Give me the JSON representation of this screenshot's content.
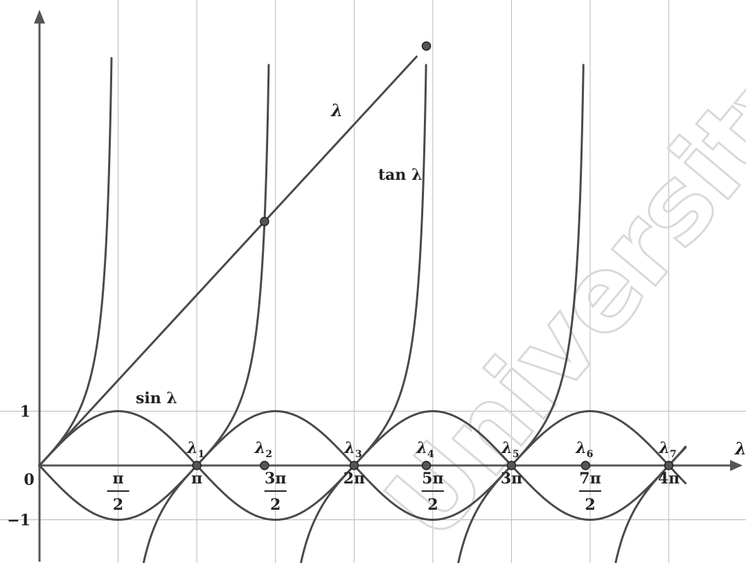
{
  "chart_data": {
    "type": "line",
    "title": "",
    "xlabel": "λ",
    "ylabel": "",
    "xlim": [
      0,
      12.9
    ],
    "ylim": [
      -1.5,
      7.33
    ],
    "grid": true,
    "y_ticks": [
      {
        "value": 1,
        "label": "1"
      },
      {
        "value": -1,
        "label": "−1"
      }
    ],
    "origin_label": "0",
    "x_ticks": [
      {
        "value": 1.5708,
        "num": "π",
        "den": "2"
      },
      {
        "value": 3.1416,
        "num": "π",
        "den": ""
      },
      {
        "value": 4.7124,
        "num": "3π",
        "den": "2"
      },
      {
        "value": 6.2832,
        "num": "2π",
        "den": ""
      },
      {
        "value": 7.854,
        "num": "5π",
        "den": "2"
      },
      {
        "value": 9.4248,
        "num": "3π",
        "den": ""
      },
      {
        "value": 10.9956,
        "num": "7π",
        "den": "2"
      },
      {
        "value": 12.5664,
        "num": "4π",
        "den": ""
      }
    ],
    "series": [
      {
        "name": "sin λ",
        "function": "sin"
      },
      {
        "name": "tan λ",
        "function": "tan"
      },
      {
        "name": "λ",
        "function": "identity"
      }
    ],
    "marked_points": [
      {
        "label": "",
        "x": 4.4934,
        "y": 4.4934
      },
      {
        "label": "",
        "x": 7.7253,
        "y": 7.7253
      },
      {
        "label": "λ",
        "sub": "1",
        "x": 3.1416,
        "y": 0
      },
      {
        "label": "λ",
        "sub": "2",
        "x": 4.4934,
        "y": 0
      },
      {
        "label": "λ",
        "sub": "3",
        "x": 6.2832,
        "y": 0
      },
      {
        "label": "λ",
        "sub": "4",
        "x": 7.7253,
        "y": 0
      },
      {
        "label": "λ",
        "sub": "5",
        "x": 9.4248,
        "y": 0
      },
      {
        "label": "λ",
        "sub": "6",
        "x": 10.9041,
        "y": 0
      },
      {
        "label": "λ",
        "sub": "7",
        "x": 12.5664,
        "y": 0
      }
    ]
  },
  "watermark": {
    "text": "University"
  }
}
